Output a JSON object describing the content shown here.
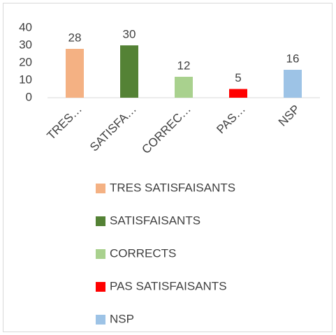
{
  "chart_data": {
    "type": "bar",
    "categories": [
      "TRES…",
      "SATISFA…",
      "CORREC…",
      "PAS…",
      "NSP"
    ],
    "legend_names": [
      "TRES SATISFAISANTS",
      "SATISFAISANTS",
      "CORRECTS",
      "PAS SATISFAISANTS",
      "NSP"
    ],
    "values": [
      28,
      30,
      12,
      5,
      16
    ],
    "colors": [
      "#f4b183",
      "#548235",
      "#a9d18e",
      "#ff0000",
      "#9dc3e6"
    ],
    "ylim": [
      0,
      40
    ],
    "yticks": [
      0,
      10,
      20,
      30,
      40
    ],
    "grid": false
  }
}
